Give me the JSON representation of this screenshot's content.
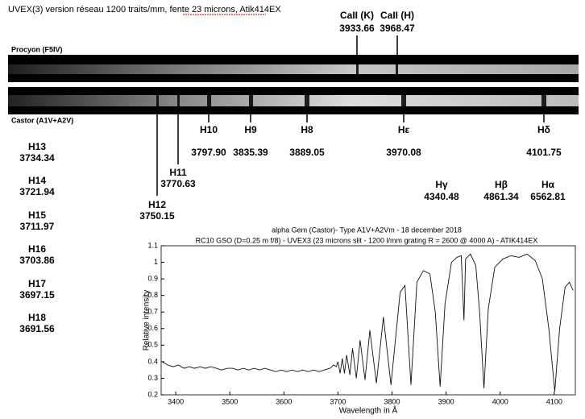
{
  "header": {
    "title": "UVEX(3) version réseau 1200 traits/mm, fente 23 microns, Atik414EX"
  },
  "stars": {
    "top": "Procyon (F5IV)",
    "bottom": "Castor (A1V+A2V)"
  },
  "lines": [
    {
      "name": "CaII (K)",
      "wavelength": "3933.66"
    },
    {
      "name": "CaII (H)",
      "wavelength": "3968.47"
    },
    {
      "name": "H12",
      "wavelength": "3750.15"
    },
    {
      "name": "H11",
      "wavelength": "3770.63"
    },
    {
      "name": "H10",
      "wavelength": "3797.90"
    },
    {
      "name": "H9",
      "wavelength": "3835.39"
    },
    {
      "name": "H8",
      "wavelength": "3889.05"
    },
    {
      "name": "Hε",
      "wavelength": "3970.08"
    },
    {
      "name": "Hδ",
      "wavelength": "4101.75"
    },
    {
      "name": "H13",
      "wavelength": "3734.34"
    },
    {
      "name": "H14",
      "wavelength": "3721.94"
    },
    {
      "name": "H15",
      "wavelength": "3711.97"
    },
    {
      "name": "H16",
      "wavelength": "3703.86"
    },
    {
      "name": "H17",
      "wavelength": "3697.15"
    },
    {
      "name": "H18",
      "wavelength": "3691.56"
    },
    {
      "name": "Hγ",
      "wavelength": "4340.48"
    },
    {
      "name": "Hβ",
      "wavelength": "4861.34"
    },
    {
      "name": "Hα",
      "wavelength": "6562.81"
    }
  ],
  "chart_data": {
    "type": "line",
    "title": "alpha Gem (Castor)- Type A1V+A2Vm - 18 december 2018",
    "subtitle": "RC10 GSO (D=0.25 m f/8) - UVEX3 (23 microns slit - 1200 l/mm grating R = 2600 @ 4000 A) - ATIK414EX",
    "x_label": "Wavelength in Å",
    "y_label": "Relative intensity",
    "xlim": [
      3373,
      4139
    ],
    "ylim": [
      0.2,
      1.1
    ],
    "xticks": [
      3400,
      3500,
      3600,
      3700,
      3800,
      3900,
      4000,
      4100
    ],
    "yticks": [
      0.2,
      0.3,
      0.4,
      0.5,
      0.6,
      0.7,
      0.8,
      0.9,
      1,
      1.1
    ],
    "x": [
      3375,
      3385,
      3395,
      3405,
      3415,
      3425,
      3435,
      3445,
      3455,
      3465,
      3475,
      3485,
      3495,
      3505,
      3515,
      3525,
      3535,
      3545,
      3555,
      3565,
      3575,
      3585,
      3595,
      3605,
      3615,
      3625,
      3635,
      3645,
      3655,
      3665,
      3675,
      3685,
      3692,
      3697,
      3700,
      3704,
      3708,
      3712,
      3716,
      3722,
      3727,
      3734,
      3741,
      3750,
      3759,
      3771,
      3784,
      3798,
      3815,
      3824,
      3835,
      3846,
      3858,
      3870,
      3880,
      3889,
      3898,
      3910,
      3920,
      3928,
      3933,
      3936,
      3945,
      3955,
      3962,
      3970,
      3978,
      3990,
      4005,
      4020,
      4035,
      4050,
      4065,
      4078,
      4090,
      4101,
      4110,
      4120,
      4128,
      4135
    ],
    "series": [
      {
        "name": "Castor",
        "color": "#111111",
        "values": [
          0.4,
          0.38,
          0.37,
          0.38,
          0.36,
          0.37,
          0.36,
          0.37,
          0.36,
          0.37,
          0.36,
          0.35,
          0.36,
          0.36,
          0.35,
          0.36,
          0.35,
          0.36,
          0.35,
          0.36,
          0.35,
          0.34,
          0.35,
          0.34,
          0.35,
          0.34,
          0.35,
          0.34,
          0.35,
          0.34,
          0.35,
          0.36,
          0.38,
          0.37,
          0.4,
          0.33,
          0.42,
          0.33,
          0.44,
          0.32,
          0.48,
          0.3,
          0.53,
          0.29,
          0.59,
          0.27,
          0.67,
          0.26,
          0.82,
          0.86,
          0.26,
          0.88,
          0.95,
          0.93,
          0.7,
          0.25,
          0.75,
          1.0,
          1.03,
          1.04,
          0.65,
          1.02,
          1.05,
          0.98,
          0.7,
          0.24,
          0.72,
          0.97,
          1.02,
          1.04,
          1.03,
          1.05,
          1.01,
          0.9,
          0.6,
          0.22,
          0.6,
          0.85,
          0.88,
          0.83
        ]
      }
    ]
  }
}
